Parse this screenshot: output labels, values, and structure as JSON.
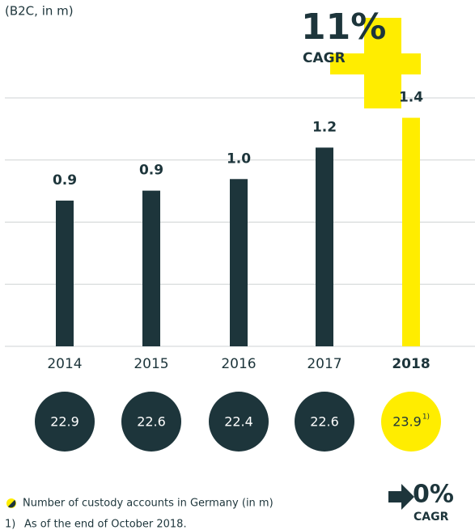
{
  "chart_data": {
    "type": "bar",
    "subtitle": "(B2C, in m)",
    "categories": [
      "2014",
      "2015",
      "2016",
      "2017",
      "2018"
    ],
    "values": [
      0.88,
      0.94,
      1.01,
      1.2,
      1.38
    ],
    "value_labels": [
      "0.9",
      "0.9",
      "1.0",
      "1.2",
      "1.4"
    ],
    "colors": [
      "#1d353b",
      "#1d353b",
      "#1d353b",
      "#1d353b",
      "#ffed00"
    ],
    "highlight_index": 4,
    "ylim": [
      0,
      1.5
    ],
    "yticks": [
      0,
      0.375,
      0.75,
      1.125,
      1.5
    ],
    "grid": true,
    "cagr_top": {
      "value": "11%",
      "label": "CAGR"
    },
    "cagr_bottom": {
      "value": "0%",
      "label": "CAGR"
    },
    "accounts": {
      "label": "Number of custody accounts in Germany (in m)",
      "values": [
        22.9,
        22.6,
        22.4,
        22.6,
        23.9
      ],
      "footnote_marks": [
        null,
        null,
        null,
        null,
        "1)"
      ]
    },
    "footnote": {
      "mark": "1)",
      "text": "As of the end of October 2018."
    }
  }
}
